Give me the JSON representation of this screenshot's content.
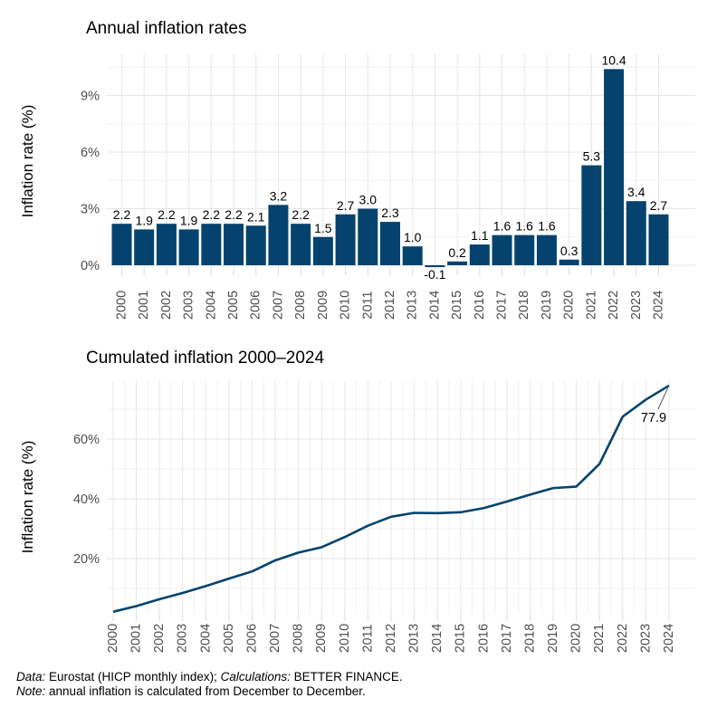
{
  "colors": {
    "series": "#05436e",
    "axis_text": "#4d4d4d",
    "label_text": "#000000",
    "grid_major": "#e6e6e6",
    "grid_minor": "#f2f2f2",
    "tick": "#dcdcdc",
    "leader": "#333333"
  },
  "charts": [
    {
      "id": "annual",
      "title": "Annual inflation rates",
      "y_axis_title": "Inflation rate (%)",
      "type": "bar",
      "categories": [
        "2000",
        "2001",
        "2002",
        "2003",
        "2004",
        "2005",
        "2006",
        "2007",
        "2008",
        "2009",
        "2010",
        "2011",
        "2012",
        "2013",
        "2014",
        "2015",
        "2016",
        "2017",
        "2018",
        "2019",
        "2020",
        "2021",
        "2022",
        "2023",
        "2024"
      ],
      "values": [
        2.2,
        1.9,
        2.2,
        1.9,
        2.2,
        2.2,
        2.1,
        3.2,
        2.2,
        1.5,
        2.7,
        3.0,
        2.3,
        1.0,
        -0.1,
        0.2,
        1.1,
        1.6,
        1.6,
        1.6,
        0.3,
        5.3,
        10.4,
        3.4,
        2.7
      ],
      "bar_labels": [
        "2.2",
        "1.9",
        "2.2",
        "1.9",
        "2.2",
        "2.2",
        "2.1",
        "3.2",
        "2.2",
        "1.5",
        "2.7",
        "3.0",
        "2.3",
        "1.0",
        "-0.1",
        "0.2",
        "1.1",
        "1.6",
        "1.6",
        "1.6",
        "0.3",
        "5.3",
        "10.4",
        "3.4",
        "2.7"
      ],
      "y_ticks": [
        {
          "label": "0%",
          "value": 0
        },
        {
          "label": "3%",
          "value": 3
        },
        {
          "label": "6%",
          "value": 6
        },
        {
          "label": "9%",
          "value": 9
        }
      ],
      "ylim": [
        -0.6,
        11.2
      ],
      "grid": true
    },
    {
      "id": "cumulated",
      "title": "Cumulated inflation 2000–2024",
      "y_axis_title": "Inflation rate (%)",
      "type": "line",
      "x": [
        "2000",
        "2001",
        "2002",
        "2003",
        "2004",
        "2005",
        "2006",
        "2007",
        "2008",
        "2009",
        "2010",
        "2011",
        "2012",
        "2013",
        "2014",
        "2015",
        "2016",
        "2017",
        "2018",
        "2019",
        "2020",
        "2021",
        "2022",
        "2023",
        "2024"
      ],
      "values": [
        2.2,
        4.1,
        6.4,
        8.5,
        10.8,
        13.3,
        15.7,
        19.4,
        22.0,
        23.8,
        27.2,
        31.0,
        34.0,
        35.3,
        35.2,
        35.5,
        36.9,
        39.1,
        41.4,
        43.6,
        44.1,
        51.7,
        67.5,
        73.2,
        77.9
      ],
      "y_ticks": [
        {
          "label": "20%",
          "value": 20
        },
        {
          "label": "40%",
          "value": 40
        },
        {
          "label": "60%",
          "value": 60
        }
      ],
      "minor_y_gridlines": [
        10,
        30,
        50,
        70
      ],
      "ylim": [
        2,
        80
      ],
      "grid": true,
      "annotation": {
        "label": "77.9",
        "at_x": "2024",
        "at_value": 77.9
      }
    }
  ],
  "footer": {
    "line1": [
      {
        "text": "Data:"
      },
      {
        "text": " Eurostat (HICP monthly index); "
      },
      {
        "text": "Calculations:"
      },
      {
        "text": " BETTER FINANCE."
      }
    ],
    "line2": [
      {
        "text": "Note:"
      },
      {
        "text": " annual inflation is calculated from December to December."
      }
    ]
  }
}
